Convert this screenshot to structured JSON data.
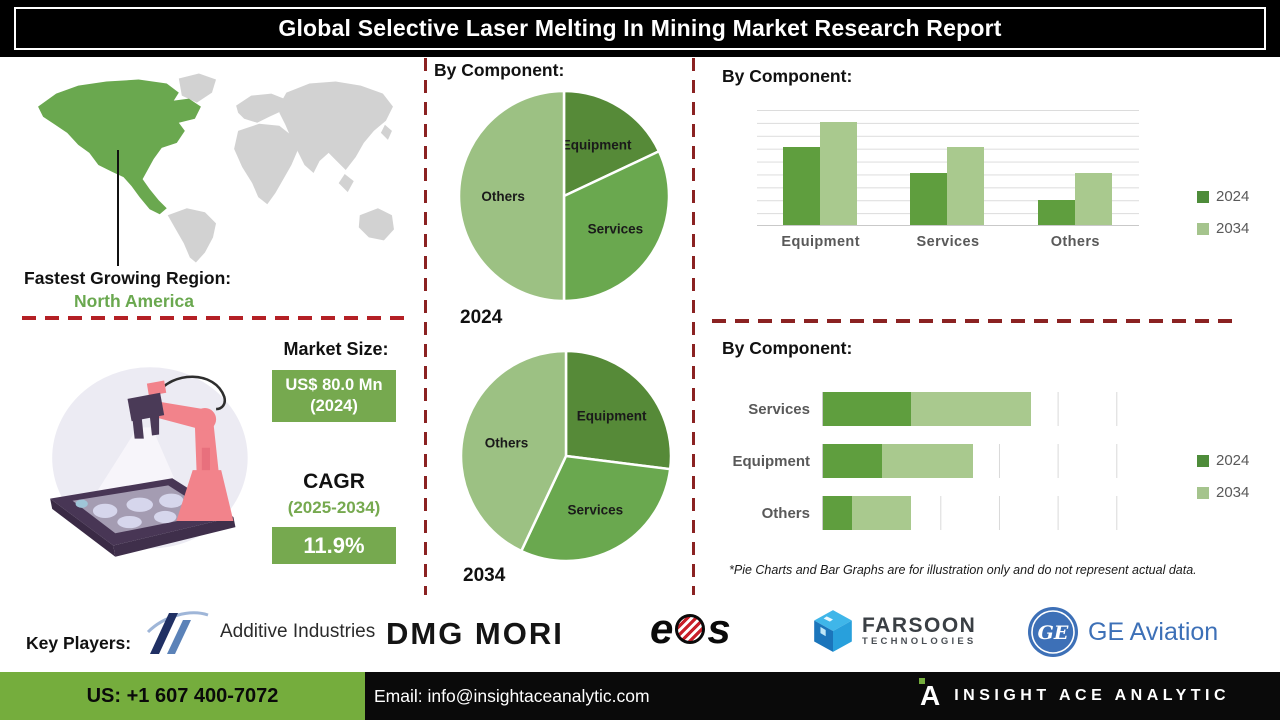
{
  "header": {
    "title": "Global Selective Laser Melting In Mining Market Research Report"
  },
  "region": {
    "label": "Fastest Growing Region:",
    "value": "North America"
  },
  "market_size": {
    "label": "Market Size:",
    "value_line1": "US$ 80.0 Mn",
    "value_line2": "(2024)",
    "cagr_label": "CAGR",
    "cagr_period": "(2025-2034)",
    "cagr_value": "11.9%"
  },
  "chart_data": [
    {
      "type": "pie",
      "title": "By Component:",
      "year_label": "2024",
      "labels": [
        "Equipment",
        "Services",
        "Others"
      ],
      "values": [
        18,
        32,
        50
      ],
      "note": "illustrative percentages estimated from slice angles"
    },
    {
      "type": "pie",
      "title": "By Component:",
      "year_label": "2034",
      "labels": [
        "Equipment",
        "Services",
        "Others"
      ],
      "values": [
        27,
        30,
        43
      ],
      "note": "illustrative percentages estimated from slice angles"
    },
    {
      "type": "bar",
      "title": "By Component:",
      "categories": [
        "Equipment",
        "Services",
        "Others"
      ],
      "series": [
        {
          "name": "2024",
          "values": [
            6.8,
            4.5,
            2.2
          ]
        },
        {
          "name": "2034",
          "values": [
            9.0,
            6.8,
            4.5
          ]
        }
      ],
      "ylim": [
        0,
        10
      ],
      "grid": true,
      "legend_position": "right",
      "note": "no axis value labels shown; heights estimated from gridlines"
    },
    {
      "type": "bar-horizontal-stacked",
      "title": "By Component:",
      "categories": [
        "Services",
        "Equipment",
        "Others"
      ],
      "series": [
        {
          "name": "2024",
          "values": [
            30,
            20,
            10
          ]
        },
        {
          "name": "2034",
          "values": [
            41,
            31,
            20
          ]
        }
      ],
      "xlim": [
        0,
        120
      ],
      "grid": true,
      "legend_position": "right",
      "note": "no axis value labels shown; lengths estimated from gridlines"
    }
  ],
  "footnote": "*Pie Charts and Bar Graphs are for illustration only and do not represent actual data.",
  "key_players": {
    "label": "Key Players:",
    "companies": [
      "Additive Industries",
      "DMG MORI",
      "EOS",
      "Farsoon Technologies",
      "GE Aviation"
    ]
  },
  "logos": {
    "additive_text": "Additive Industries",
    "dmg_text": "DMG MORI",
    "eos_left": "e",
    "eos_right": "s",
    "farsoon_line1": "FARSOON",
    "farsoon_line2": "TECHNOLOGIES",
    "ge_monogram": "GE",
    "ge_text": "GE Aviation"
  },
  "footer": {
    "phone": "US: +1 607 400-7072",
    "email": "Email: info@insightaceanalytic.com",
    "brand_mark": "A",
    "brand": "INSIGHT ACE ANALYTIC"
  },
  "colors": {
    "pie_slices": [
      "#568a38",
      "#6aa84f",
      "#9cc183"
    ],
    "bar_2024": "#5f9e3e",
    "bar_2034": "#a9c98e",
    "legend_2024": "#4e8c3a",
    "legend_2034": "#a5c48d",
    "box_green": "#76a94f",
    "footer_green": "#75ad3d",
    "dashed_red": "#b42025",
    "dashed_maroon": "#8b2222",
    "map_land": "#d2d2d2",
    "map_highlight": "#6aa84f"
  }
}
